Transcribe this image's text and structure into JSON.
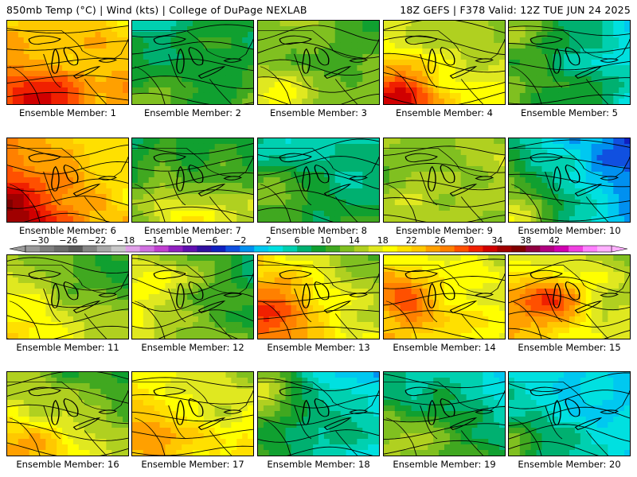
{
  "header": {
    "left": "850mb Temp (°C) | Wind (kts) | College of DuPage NEXLAB",
    "right": "18Z GEFS | F378 Valid: 12Z TUE JUN 24 2025"
  },
  "panels": [
    {
      "label": "Ensemble Member: 1",
      "base_temp": 24,
      "gradient": [
        -0.02,
        0.08
      ],
      "hot_spot": [
        0.25,
        0.85,
        6
      ]
    },
    {
      "label": "Ensemble Member: 2",
      "base_temp": 9,
      "gradient": [
        0.03,
        0.06
      ],
      "hot_spot": [
        0.2,
        0.9,
        4
      ]
    },
    {
      "label": "Ensemble Member: 3",
      "base_temp": 13,
      "gradient": [
        -0.05,
        0.04
      ],
      "hot_spot": [
        0.2,
        0.9,
        3
      ]
    },
    {
      "label": "Ensemble Member: 4",
      "base_temp": 18,
      "gradient": [
        -0.06,
        0.1
      ],
      "hot_spot": [
        0.15,
        0.9,
        10
      ]
    },
    {
      "label": "Ensemble Member: 5",
      "base_temp": 7,
      "gradient": [
        -0.08,
        0.04
      ],
      "hot_spot": [
        0.1,
        0.1,
        6
      ]
    },
    {
      "label": "Ensemble Member: 6",
      "base_temp": 25,
      "gradient": [
        -0.1,
        0.05
      ],
      "hot_spot": [
        0.1,
        0.75,
        6
      ]
    },
    {
      "label": "Ensemble Member: 7",
      "base_temp": 12,
      "gradient": [
        0.02,
        0.12
      ],
      "hot_spot": [
        0.5,
        0.95,
        4
      ]
    },
    {
      "label": "Ensemble Member: 8",
      "base_temp": 7,
      "gradient": [
        0.0,
        0.1
      ],
      "hot_spot": [
        0.1,
        0.5,
        6
      ]
    },
    {
      "label": "Ensemble Member: 9",
      "base_temp": 14,
      "gradient": [
        0.0,
        0.0
      ],
      "hot_spot": [
        0.5,
        0.5,
        1
      ]
    },
    {
      "label": "Ensemble Member: 10",
      "base_temp": 4,
      "gradient": [
        -0.12,
        0.08
      ],
      "hot_spot": [
        0.05,
        0.95,
        8
      ]
    },
    {
      "label": "Ensemble Member: 11",
      "base_temp": 14,
      "gradient": [
        -0.05,
        0.1
      ],
      "hot_spot": [
        0.2,
        0.8,
        4
      ]
    },
    {
      "label": "Ensemble Member: 12",
      "base_temp": 13,
      "gradient": [
        -0.08,
        0.05
      ],
      "hot_spot": [
        0.15,
        0.3,
        4
      ]
    },
    {
      "label": "Ensemble Member: 13",
      "base_temp": 19,
      "gradient": [
        -0.08,
        0.08
      ],
      "hot_spot": [
        0.15,
        0.6,
        8
      ]
    },
    {
      "label": "Ensemble Member: 14",
      "base_temp": 19,
      "gradient": [
        -0.05,
        0.05
      ],
      "hot_spot": [
        0.15,
        0.5,
        8
      ]
    },
    {
      "label": "Ensemble Member: 15",
      "base_temp": 18,
      "gradient": [
        -0.05,
        0.06
      ],
      "hot_spot": [
        0.35,
        0.55,
        10
      ]
    },
    {
      "label": "Ensemble Member: 16",
      "base_temp": 15,
      "gradient": [
        -0.06,
        0.12
      ],
      "hot_spot": [
        0.3,
        0.9,
        6
      ]
    },
    {
      "label": "Ensemble Member: 17",
      "base_temp": 19,
      "gradient": [
        -0.06,
        0.08
      ],
      "hot_spot": [
        0.1,
        0.5,
        4
      ]
    },
    {
      "label": "Ensemble Member: 18",
      "base_temp": 6,
      "gradient": [
        -0.08,
        0.06
      ],
      "hot_spot": [
        0.1,
        0.2,
        8
      ]
    },
    {
      "label": "Ensemble Member: 19",
      "base_temp": 8,
      "gradient": [
        -0.05,
        0.08
      ],
      "hot_spot": [
        0.3,
        0.8,
        6
      ]
    },
    {
      "label": "Ensemble Member: 20",
      "base_temp": 4,
      "gradient": [
        -0.05,
        0.06
      ],
      "hot_spot": [
        0.1,
        0.8,
        5
      ]
    }
  ],
  "colorbar": {
    "tick_labels": [
      "−30",
      "−26",
      "−22",
      "−18",
      "−14",
      "−10",
      "−6",
      "−2",
      "2",
      "6",
      "10",
      "14",
      "18",
      "22",
      "26",
      "30",
      "34",
      "38",
      "42"
    ],
    "colors": [
      "#9a9a9a",
      "#7f7f7f",
      "#6b6b6b",
      "#5a5a5a",
      "#858585",
      "#a8a8a8",
      "#c8c8c8",
      "#e0a0e8",
      "#d070e0",
      "#c040d0",
      "#9020c0",
      "#6010b0",
      "#3010a0",
      "#1020c0",
      "#1050e0",
      "#0090f0",
      "#00c8f0",
      "#00e0e0",
      "#00d0b0",
      "#00b070",
      "#10a030",
      "#40a820",
      "#80c020",
      "#b0d020",
      "#e0e820",
      "#ffff00",
      "#ffe000",
      "#ffc800",
      "#ffa000",
      "#ff8000",
      "#ff5000",
      "#f02000",
      "#d00000",
      "#a00000",
      "#800000",
      "#900040",
      "#b00080",
      "#d000b0",
      "#f040e0",
      "#ff80ff",
      "#ffb0ff"
    ]
  }
}
